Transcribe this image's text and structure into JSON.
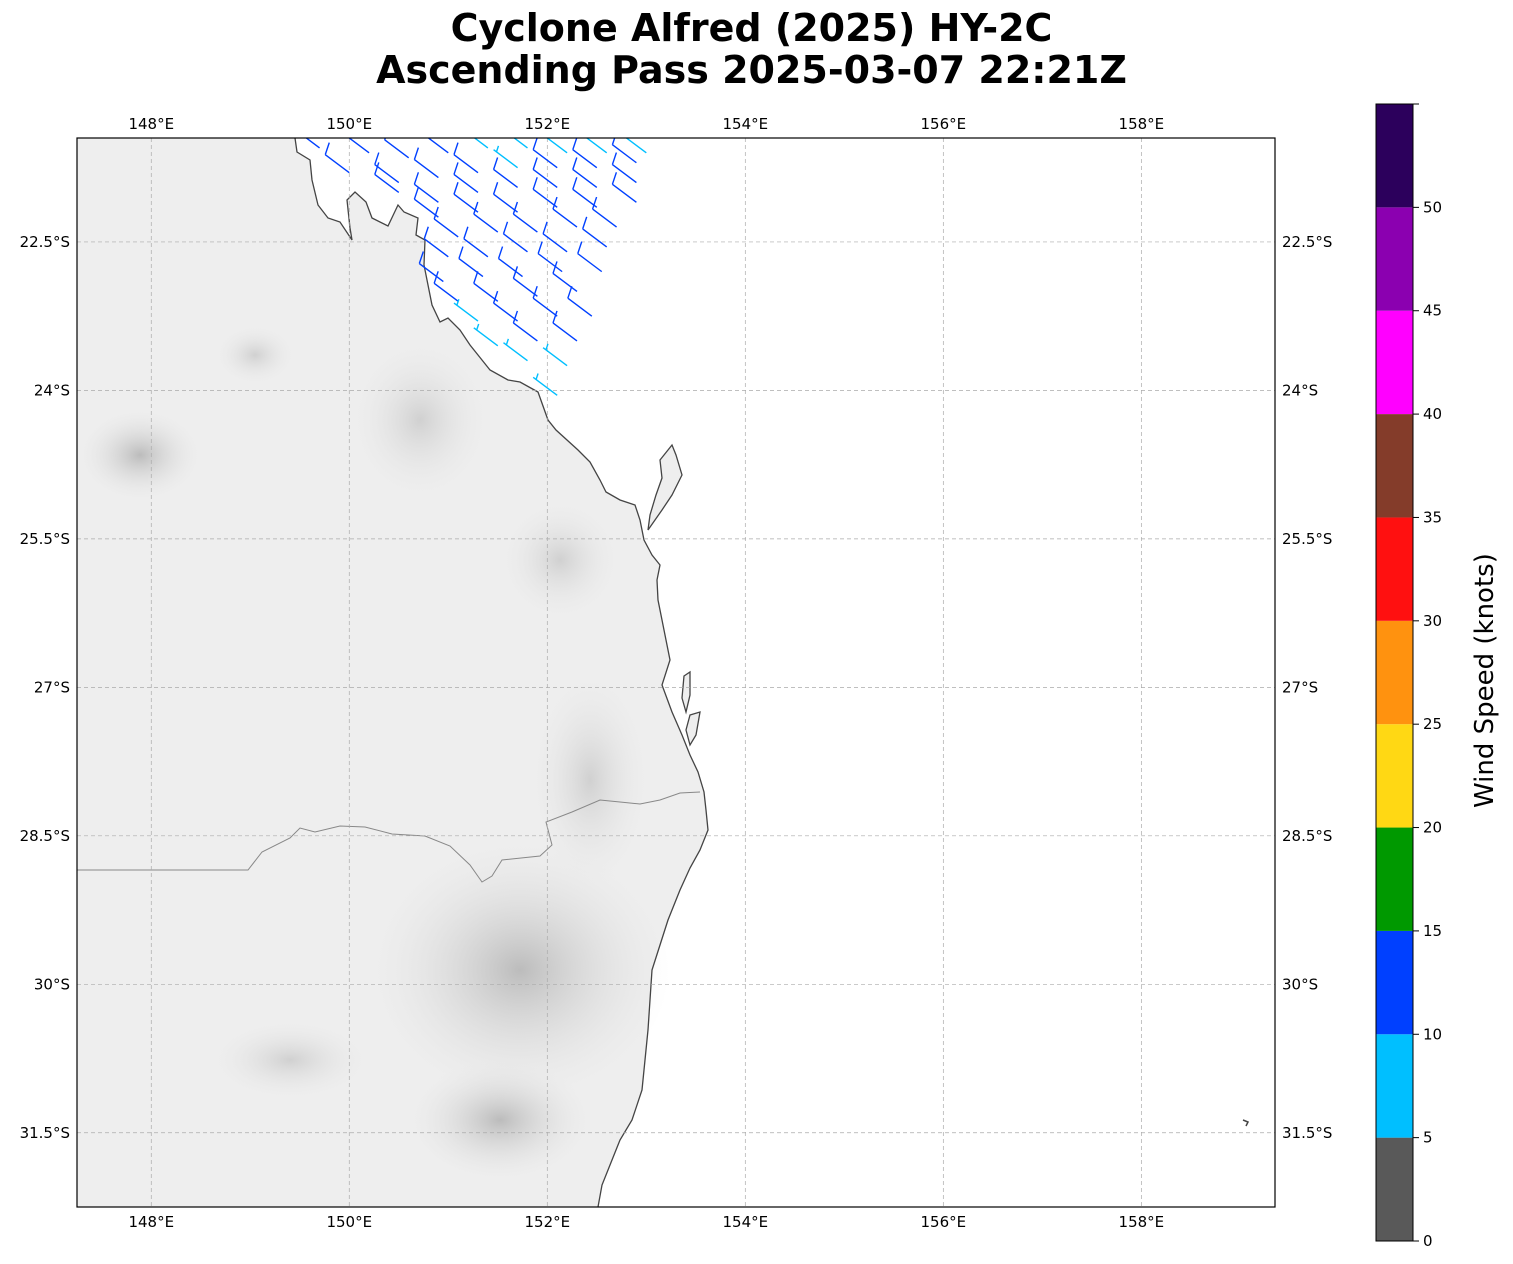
{
  "title": {
    "line1": "Cyclone Alfred (2025) HY-2C",
    "line2": "Ascending Pass 2025-03-07 22:21Z"
  },
  "map": {
    "lon_range": [
      147.25,
      159.35
    ],
    "lat_range": [
      -32.25,
      -21.45
    ],
    "lon_ticks": [
      {
        "value": 148,
        "label": "148°E"
      },
      {
        "value": 150,
        "label": "150°E"
      },
      {
        "value": 152,
        "label": "152°E"
      },
      {
        "value": 154,
        "label": "154°E"
      },
      {
        "value": 156,
        "label": "156°E"
      },
      {
        "value": 158,
        "label": "158°E"
      }
    ],
    "lat_ticks": [
      {
        "value": -22.5,
        "label": "22.5°S"
      },
      {
        "value": -24,
        "label": "24°S"
      },
      {
        "value": -25.5,
        "label": "25.5°S"
      },
      {
        "value": -27,
        "label": "27°S"
      },
      {
        "value": -28.5,
        "label": "28.5°S"
      },
      {
        "value": -30,
        "label": "30°S"
      },
      {
        "value": -31.5,
        "label": "31.5°S"
      }
    ],
    "gridlines": true
  },
  "colorbar": {
    "label": "Wind Speed (knots)",
    "ticks": [
      0,
      5,
      10,
      15,
      20,
      25,
      30,
      35,
      40,
      45,
      50
    ],
    "bins": [
      {
        "from": 0,
        "to": 5,
        "color": "#595959"
      },
      {
        "from": 5,
        "to": 10,
        "color": "#00bfff"
      },
      {
        "from": 10,
        "to": 15,
        "color": "#0040ff"
      },
      {
        "from": 15,
        "to": 20,
        "color": "#009900"
      },
      {
        "from": 20,
        "to": 25,
        "color": "#ffd814"
      },
      {
        "from": 25,
        "to": 30,
        "color": "#ff920f"
      },
      {
        "from": 30,
        "to": 35,
        "color": "#ff1010"
      },
      {
        "from": 35,
        "to": 40,
        "color": "#843c2a"
      },
      {
        "from": 40,
        "to": 45,
        "color": "#ff00ff"
      },
      {
        "from": 45,
        "to": 50,
        "color": "#8b00b0"
      },
      {
        "from": 50,
        "to": 55,
        "color": "#2c005c"
      }
    ]
  },
  "wind_barbs": [
    {
      "lon": 149.7,
      "lat": -21.55,
      "kt": 12
    },
    {
      "lon": 150.2,
      "lat": -21.6,
      "kt": 12
    },
    {
      "lon": 150.6,
      "lat": -21.65,
      "kt": 12
    },
    {
      "lon": 151.0,
      "lat": -21.6,
      "kt": 12
    },
    {
      "lon": 151.4,
      "lat": -21.55,
      "kt": 8
    },
    {
      "lon": 151.8,
      "lat": -21.55,
      "kt": 8
    },
    {
      "lon": 152.2,
      "lat": -21.6,
      "kt": 8
    },
    {
      "lon": 152.6,
      "lat": -21.6,
      "kt": 8
    },
    {
      "lon": 153.0,
      "lat": -21.6,
      "kt": 8
    },
    {
      "lon": 150.0,
      "lat": -21.8,
      "kt": 12
    },
    {
      "lon": 150.5,
      "lat": -21.9,
      "kt": 12
    },
    {
      "lon": 150.9,
      "lat": -21.85,
      "kt": 12
    },
    {
      "lon": 151.3,
      "lat": -21.8,
      "kt": 12
    },
    {
      "lon": 151.7,
      "lat": -21.75,
      "kt": 8
    },
    {
      "lon": 152.1,
      "lat": -21.75,
      "kt": 12
    },
    {
      "lon": 152.5,
      "lat": -21.75,
      "kt": 12
    },
    {
      "lon": 152.9,
      "lat": -21.7,
      "kt": 12
    },
    {
      "lon": 150.5,
      "lat": -22.0,
      "kt": 12
    },
    {
      "lon": 150.9,
      "lat": -22.1,
      "kt": 12
    },
    {
      "lon": 151.3,
      "lat": -22.0,
      "kt": 12
    },
    {
      "lon": 151.7,
      "lat": -21.95,
      "kt": 12
    },
    {
      "lon": 152.1,
      "lat": -21.95,
      "kt": 12
    },
    {
      "lon": 152.5,
      "lat": -21.95,
      "kt": 12
    },
    {
      "lon": 152.9,
      "lat": -21.9,
      "kt": 12
    },
    {
      "lon": 150.9,
      "lat": -22.25,
      "kt": 12
    },
    {
      "lon": 151.3,
      "lat": -22.2,
      "kt": 12
    },
    {
      "lon": 151.7,
      "lat": -22.2,
      "kt": 12
    },
    {
      "lon": 152.1,
      "lat": -22.15,
      "kt": 12
    },
    {
      "lon": 152.5,
      "lat": -22.15,
      "kt": 12
    },
    {
      "lon": 152.9,
      "lat": -22.1,
      "kt": 12
    },
    {
      "lon": 151.1,
      "lat": -22.45,
      "kt": 12
    },
    {
      "lon": 151.5,
      "lat": -22.4,
      "kt": 12
    },
    {
      "lon": 151.9,
      "lat": -22.4,
      "kt": 12
    },
    {
      "lon": 152.3,
      "lat": -22.35,
      "kt": 12
    },
    {
      "lon": 152.7,
      "lat": -22.35,
      "kt": 12
    },
    {
      "lon": 151.0,
      "lat": -22.65,
      "kt": 12
    },
    {
      "lon": 151.4,
      "lat": -22.65,
      "kt": 12
    },
    {
      "lon": 151.8,
      "lat": -22.6,
      "kt": 12
    },
    {
      "lon": 152.2,
      "lat": -22.6,
      "kt": 12
    },
    {
      "lon": 152.6,
      "lat": -22.55,
      "kt": 12
    },
    {
      "lon": 150.95,
      "lat": -22.9,
      "kt": 12
    },
    {
      "lon": 151.35,
      "lat": -22.85,
      "kt": 12
    },
    {
      "lon": 151.75,
      "lat": -22.85,
      "kt": 12
    },
    {
      "lon": 152.15,
      "lat": -22.8,
      "kt": 12
    },
    {
      "lon": 152.55,
      "lat": -22.8,
      "kt": 12
    },
    {
      "lon": 151.1,
      "lat": -23.1,
      "kt": 12
    },
    {
      "lon": 151.5,
      "lat": -23.1,
      "kt": 12
    },
    {
      "lon": 151.9,
      "lat": -23.05,
      "kt": 12
    },
    {
      "lon": 152.3,
      "lat": -23.0,
      "kt": 12
    },
    {
      "lon": 151.3,
      "lat": -23.3,
      "kt": 8
    },
    {
      "lon": 151.7,
      "lat": -23.3,
      "kt": 12
    },
    {
      "lon": 152.1,
      "lat": -23.25,
      "kt": 12
    },
    {
      "lon": 152.45,
      "lat": -23.25,
      "kt": 12
    },
    {
      "lon": 151.5,
      "lat": -23.55,
      "kt": 8
    },
    {
      "lon": 151.9,
      "lat": -23.5,
      "kt": 12
    },
    {
      "lon": 152.3,
      "lat": -23.5,
      "kt": 12
    },
    {
      "lon": 151.8,
      "lat": -23.7,
      "kt": 8
    },
    {
      "lon": 152.2,
      "lat": -23.75,
      "kt": 8
    },
    {
      "lon": 152.1,
      "lat": -24.05,
      "kt": 8
    }
  ]
}
